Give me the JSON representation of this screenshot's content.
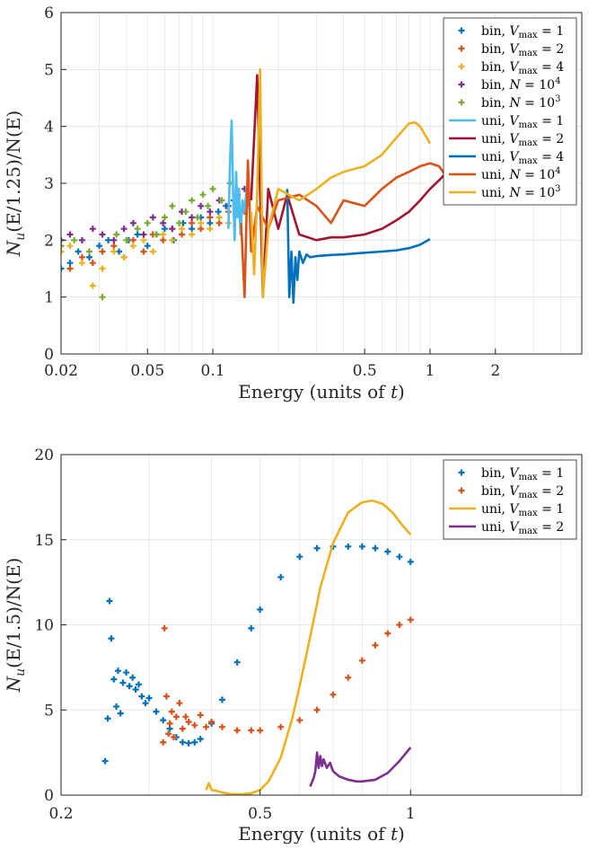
{
  "chart_data": [
    {
      "type": "scatter",
      "xlabel": "Energy (units of t)",
      "ylabel": "N_u(E/1.25)/N(E)",
      "xscale": "log",
      "xlim": [
        0.02,
        5
      ],
      "ylim": [
        0,
        6
      ],
      "xticks": [
        0.02,
        0.05,
        0.1,
        0.5,
        1,
        2
      ],
      "xtick_labels": [
        "0.02",
        "0.05",
        "0.1",
        "0.5",
        "1",
        "2"
      ],
      "yticks": [
        0,
        1,
        2,
        3,
        4,
        5,
        6
      ],
      "ytick_labels": [
        "0",
        "1",
        "2",
        "3",
        "4",
        "5",
        "6"
      ],
      "grid": true,
      "legend_position": "top-right",
      "series": [
        {
          "name": "bin, Vmax = 1",
          "label_main": "bin, V",
          "label_sub": "max",
          "label_tail": " = 1",
          "kind": "scatter",
          "color": "#0072BD",
          "x": [
            0.02,
            0.022,
            0.024,
            0.027,
            0.03,
            0.033,
            0.037,
            0.041,
            0.045,
            0.05,
            0.055,
            0.06,
            0.066,
            0.073,
            0.08,
            0.088,
            0.097,
            0.106,
            0.115,
            0.125
          ],
          "y": [
            1.5,
            1.6,
            1.8,
            1.7,
            1.9,
            2.0,
            1.8,
            2.0,
            2.1,
            1.9,
            2.1,
            2.2,
            2.0,
            2.3,
            2.2,
            2.4,
            2.3,
            2.5,
            2.6,
            2.7
          ]
        },
        {
          "name": "bin, Vmax = 2",
          "label_main": "bin, V",
          "label_sub": "max",
          "label_tail": " = 2",
          "kind": "scatter",
          "color": "#D95319",
          "x": [
            0.02,
            0.022,
            0.025,
            0.028,
            0.031,
            0.035,
            0.039,
            0.043,
            0.048,
            0.053,
            0.059,
            0.065,
            0.072,
            0.08,
            0.088,
            0.097,
            0.107,
            0.118,
            0.13,
            0.14
          ],
          "y": [
            1.9,
            1.5,
            1.7,
            1.6,
            1.8,
            1.9,
            1.7,
            2.0,
            1.8,
            2.1,
            2.0,
            2.2,
            2.1,
            2.3,
            2.2,
            2.4,
            2.3,
            2.5,
            2.6,
            2.5
          ]
        },
        {
          "name": "bin, Vmax = 4",
          "label_main": "bin, V",
          "label_sub": "max",
          "label_tail": " = 4",
          "kind": "scatter",
          "color": "#EDB120",
          "x": [
            0.02,
            0.022,
            0.025,
            0.028,
            0.031,
            0.035,
            0.039,
            0.043,
            0.048,
            0.053,
            0.059,
            0.065,
            0.072,
            0.08,
            0.088,
            0.097,
            0.107,
            0.118,
            0.13,
            0.14
          ],
          "y": [
            1.8,
            1.9,
            1.6,
            1.2,
            1.5,
            1.8,
            1.7,
            1.9,
            2.0,
            1.8,
            2.1,
            2.0,
            2.2,
            2.1,
            2.3,
            2.2,
            2.4,
            2.3,
            2.5,
            2.6
          ]
        },
        {
          "name": "bin, N = 10^4",
          "label_main": "bin, N = 10",
          "label_sup": "4",
          "kind": "scatter",
          "color": "#7E2F8E",
          "x": [
            0.02,
            0.022,
            0.025,
            0.028,
            0.031,
            0.035,
            0.039,
            0.043,
            0.048,
            0.053,
            0.059,
            0.065,
            0.072,
            0.08,
            0.088,
            0.097,
            0.107,
            0.118,
            0.13,
            0.14
          ],
          "y": [
            2.0,
            2.1,
            2.0,
            2.2,
            2.1,
            2.0,
            2.2,
            2.3,
            2.1,
            2.4,
            2.3,
            2.2,
            2.5,
            2.4,
            2.6,
            2.5,
            2.7,
            2.6,
            2.8,
            2.9
          ]
        },
        {
          "name": "bin, N = 10^3",
          "label_main": "bin, N = 10",
          "label_sup": "3",
          "kind": "scatter",
          "color": "#77AC30",
          "x": [
            0.02,
            0.023,
            0.027,
            0.031,
            0.036,
            0.04,
            0.045,
            0.05,
            0.055,
            0.06,
            0.065,
            0.07,
            0.075,
            0.08,
            0.085,
            0.09,
            0.095,
            0.1,
            0.11,
            0.12
          ],
          "y": [
            1.9,
            2.0,
            1.8,
            1.0,
            2.1,
            2.0,
            2.2,
            2.3,
            2.1,
            2.4,
            2.6,
            2.3,
            2.5,
            2.7,
            2.4,
            2.8,
            2.6,
            2.9,
            2.7,
            3.0
          ]
        },
        {
          "name": "uni, Vmax = 1",
          "label_main": "uni, V",
          "label_sub": "max",
          "label_tail": " = 1",
          "kind": "line",
          "color": "#4DBEEE",
          "x": [
            0.118,
            0.12,
            0.122,
            0.124,
            0.126,
            0.128,
            0.13,
            0.132,
            0.134,
            0.137,
            0.14,
            0.143,
            0.146,
            0.15
          ],
          "y": [
            2.2,
            3.4,
            4.1,
            2.8,
            2.0,
            3.2,
            2.4,
            2.9,
            2.1,
            2.7,
            2.5,
            2.9,
            2.6,
            2.8
          ]
        },
        {
          "name": "uni, Vmax = 2",
          "label_main": "uni, V",
          "label_sub": "max",
          "label_tail": " = 2",
          "kind": "line",
          "color": "#A2142F",
          "x": [
            0.15,
            0.16,
            0.17,
            0.18,
            0.2,
            0.22,
            0.25,
            0.3,
            0.35,
            0.4,
            0.5,
            0.6,
            0.7,
            0.8,
            0.9,
            1.0,
            1.1,
            1.2,
            1.3,
            1.4,
            1.5,
            1.6,
            1.7,
            1.8,
            1.9,
            2.0
          ],
          "y": [
            2.7,
            4.9,
            1.0,
            2.9,
            2.2,
            2.8,
            2.1,
            2.0,
            2.05,
            2.05,
            2.1,
            2.2,
            2.35,
            2.5,
            2.7,
            2.9,
            3.05,
            3.2,
            3.3,
            3.37,
            3.38,
            3.32,
            3.22,
            3.12,
            3.05,
            2.98
          ]
        },
        {
          "name": "uni, Vmax = 4",
          "label_main": "uni, V",
          "label_sub": "max",
          "label_tail": " = 4",
          "kind": "line",
          "color": "#0072BD",
          "x": [
            0.22,
            0.225,
            0.23,
            0.235,
            0.24,
            0.245,
            0.25,
            0.26,
            0.27,
            0.28,
            0.3,
            0.35,
            0.4,
            0.5,
            0.6,
            0.7,
            0.8,
            0.9,
            1.0
          ],
          "y": [
            2.9,
            1.0,
            1.8,
            0.9,
            1.7,
            1.3,
            1.8,
            1.6,
            1.75,
            1.7,
            1.72,
            1.74,
            1.75,
            1.78,
            1.8,
            1.82,
            1.86,
            1.92,
            2.02
          ]
        },
        {
          "name": "uni, N = 10^4",
          "label_main": "uni, N = 10",
          "label_sup": "4",
          "kind": "line",
          "color": "#D95319",
          "x": [
            0.135,
            0.14,
            0.145,
            0.15,
            0.16,
            0.18,
            0.2,
            0.25,
            0.3,
            0.35,
            0.4,
            0.5,
            0.6,
            0.7,
            0.8,
            0.9,
            1.0,
            1.1,
            1.2,
            1.3,
            1.4,
            1.5,
            1.6,
            1.8,
            2.0
          ],
          "y": [
            2.3,
            1.0,
            3.4,
            1.8,
            2.6,
            2.2,
            2.7,
            2.8,
            2.6,
            2.3,
            2.7,
            2.6,
            2.9,
            3.1,
            3.2,
            3.3,
            3.35,
            3.3,
            3.1,
            3.2,
            2.9,
            2.8,
            2.8,
            2.75,
            2.77
          ]
        },
        {
          "name": "uni, N = 10^3",
          "label_main": "uni, N = 10",
          "label_sup": "3",
          "kind": "line",
          "color": "#EDB120",
          "x": [
            0.15,
            0.155,
            0.16,
            0.165,
            0.17,
            0.18,
            0.2,
            0.25,
            0.3,
            0.35,
            0.4,
            0.5,
            0.6,
            0.7,
            0.8,
            0.85,
            0.9,
            0.95,
            1.0
          ],
          "y": [
            2.5,
            1.4,
            2.8,
            5.0,
            1.0,
            2.2,
            2.9,
            2.7,
            2.9,
            3.1,
            3.2,
            3.3,
            3.5,
            3.8,
            4.05,
            4.07,
            4.0,
            3.85,
            3.7
          ]
        }
      ]
    },
    {
      "type": "scatter",
      "xlabel": "Energy (units of t)",
      "ylabel": "N_u(E/1.5)/N(E)",
      "xscale": "log",
      "xlim": [
        0.2,
        2.2
      ],
      "ylim": [
        0,
        20
      ],
      "xticks": [
        0.2,
        0.5,
        1
      ],
      "xtick_labels": [
        "0.2",
        "0.5",
        "1"
      ],
      "yticks": [
        0,
        5,
        10,
        15,
        20
      ],
      "ytick_labels": [
        "0",
        "5",
        "10",
        "15",
        "20"
      ],
      "grid": true,
      "legend_position": "top-right",
      "series": [
        {
          "name": "bin, Vmax = 1",
          "label_main": "bin, V",
          "label_sub": "max",
          "label_tail": " = 1",
          "kind": "scatter",
          "color": "#0072BD",
          "x": [
            0.245,
            0.248,
            0.25,
            0.252,
            0.255,
            0.258,
            0.26,
            0.263,
            0.266,
            0.27,
            0.274,
            0.278,
            0.282,
            0.286,
            0.29,
            0.295,
            0.3,
            0.31,
            0.32,
            0.33,
            0.34,
            0.35,
            0.36,
            0.37,
            0.38,
            0.4,
            0.42,
            0.45,
            0.48,
            0.5,
            0.55,
            0.6,
            0.65,
            0.7,
            0.75,
            0.8,
            0.85,
            0.9,
            0.95,
            1.0
          ],
          "y": [
            2.0,
            4.5,
            11.4,
            9.2,
            6.8,
            5.2,
            7.3,
            4.8,
            6.6,
            7.2,
            6.4,
            6.9,
            6.2,
            6.5,
            5.8,
            5.4,
            5.7,
            4.9,
            4.4,
            3.9,
            3.4,
            3.1,
            3.05,
            3.1,
            3.3,
            4.2,
            5.6,
            7.8,
            9.8,
            10.9,
            12.8,
            14.0,
            14.5,
            14.6,
            14.6,
            14.6,
            14.5,
            14.3,
            14.0,
            13.7
          ]
        },
        {
          "name": "bin, Vmax = 2",
          "label_main": "bin, V",
          "label_sub": "max",
          "label_tail": " = 2",
          "kind": "scatter",
          "color": "#D95319",
          "x": [
            0.32,
            0.322,
            0.325,
            0.328,
            0.33,
            0.333,
            0.336,
            0.34,
            0.345,
            0.35,
            0.355,
            0.36,
            0.37,
            0.38,
            0.39,
            0.4,
            0.42,
            0.45,
            0.48,
            0.5,
            0.55,
            0.6,
            0.65,
            0.7,
            0.75,
            0.8,
            0.85,
            0.9,
            0.95,
            1.0
          ],
          "y": [
            3.1,
            9.8,
            5.8,
            3.6,
            4.2,
            4.9,
            3.4,
            4.6,
            5.4,
            3.9,
            4.6,
            4.3,
            4.1,
            4.7,
            4.0,
            4.3,
            4.0,
            3.8,
            3.8,
            3.8,
            4.0,
            4.4,
            5.0,
            5.9,
            6.9,
            7.9,
            8.8,
            9.5,
            10.0,
            10.3
          ]
        },
        {
          "name": "uni, Vmax = 1",
          "label_main": "uni, V",
          "label_sub": "max",
          "label_tail": " = 1",
          "kind": "line",
          "color": "#EDB120",
          "x": [
            0.39,
            0.395,
            0.4,
            0.41,
            0.42,
            0.44,
            0.46,
            0.48,
            0.5,
            0.52,
            0.55,
            0.58,
            0.6,
            0.63,
            0.66,
            0.7,
            0.75,
            0.8,
            0.84,
            0.88,
            0.92,
            0.96,
            1.0
          ],
          "y": [
            0.3,
            0.7,
            0.3,
            0.25,
            0.15,
            0.05,
            0.05,
            0.1,
            0.3,
            0.8,
            2.2,
            4.5,
            6.4,
            9.3,
            12.2,
            14.8,
            16.6,
            17.2,
            17.3,
            17.1,
            16.6,
            15.9,
            15.3
          ]
        },
        {
          "name": "uni, Vmax = 2",
          "label_main": "uni, V",
          "label_sub": "max",
          "label_tail": " = 2",
          "kind": "line",
          "color": "#7E2F8E",
          "x": [
            0.63,
            0.64,
            0.645,
            0.65,
            0.655,
            0.66,
            0.665,
            0.67,
            0.68,
            0.69,
            0.7,
            0.72,
            0.75,
            0.78,
            0.8,
            0.85,
            0.9,
            0.95,
            1.0
          ],
          "y": [
            0.5,
            1.0,
            1.4,
            2.5,
            1.6,
            2.3,
            1.7,
            2.1,
            1.6,
            1.9,
            1.4,
            1.1,
            0.9,
            0.8,
            0.8,
            0.9,
            1.3,
            2.0,
            2.8
          ]
        }
      ]
    }
  ]
}
